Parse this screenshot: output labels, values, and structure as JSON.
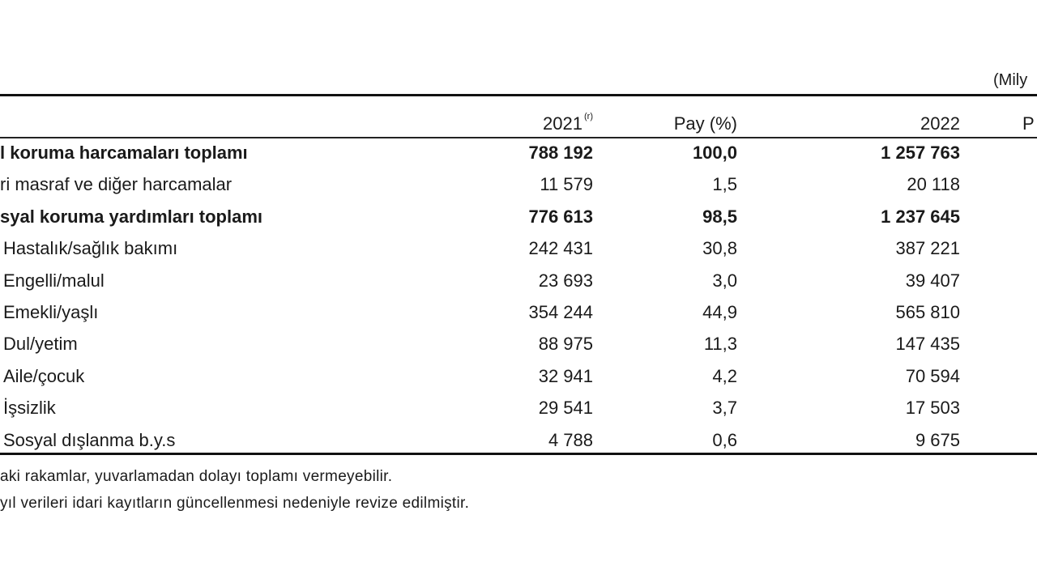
{
  "unit_label": "(Mily",
  "headers": {
    "col_2021": "2021",
    "col_2021_sup": "(r)",
    "col_pay": "Pay (%)",
    "col_2022": "2022",
    "col_pay_2022": "P"
  },
  "rows": [
    {
      "label": "l koruma harcamaları toplamı",
      "v2021": "788 192",
      "pay": "100,0",
      "v2022": "1 257 763",
      "bold": true
    },
    {
      "label": "ri masraf ve diğer harcamalar",
      "v2021": "11 579",
      "pay": "1,5",
      "v2022": "20 118",
      "bold": false
    },
    {
      "label": "syal koruma yardımları toplamı",
      "v2021": "776 613",
      "pay": "98,5",
      "v2022": "1 237 645",
      "bold": true
    },
    {
      "label": "Hastalık/sağlık bakımı",
      "v2021": "242 431",
      "pay": "30,8",
      "v2022": "387 221",
      "bold": false
    },
    {
      "label": "Engelli/malul",
      "v2021": "23 693",
      "pay": "3,0",
      "v2022": "39 407",
      "bold": false
    },
    {
      "label": "Emekli/yaşlı",
      "v2021": "354 244",
      "pay": "44,9",
      "v2022": "565 810",
      "bold": false
    },
    {
      "label": "Dul/yetim",
      "v2021": "88 975",
      "pay": "11,3",
      "v2022": "147 435",
      "bold": false
    },
    {
      "label": "Aile/çocuk",
      "v2021": "32 941",
      "pay": "4,2",
      "v2022": "70 594",
      "bold": false
    },
    {
      "label": "İşsizlik",
      "v2021": "29 541",
      "pay": "3,7",
      "v2022": "17 503",
      "bold": false
    },
    {
      "label": "Sosyal dışlanma b.y.s",
      "v2021": "4 788",
      "pay": "0,6",
      "v2022": "9 675",
      "bold": false
    }
  ],
  "notes": [
    "aki rakamlar, yuvarlamadan dolayı toplamı vermeyebilir.",
    "yıl verileri idari kayıtların güncellenmesi nedeniyle revize edilmiştir."
  ]
}
